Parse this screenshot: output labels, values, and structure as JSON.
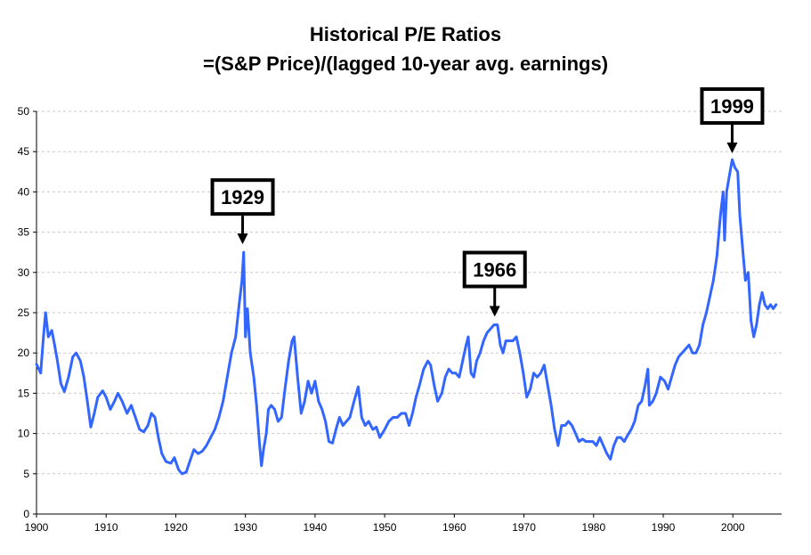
{
  "chart_data": {
    "type": "line",
    "title": "Historical P/E Ratios",
    "subtitle": "=(S&P Price)/(lagged 10-year avg. earnings)",
    "xlabel": "",
    "ylabel": "",
    "xlim": [
      1900,
      2007
    ],
    "ylim": [
      0,
      50
    ],
    "x_ticks": [
      1900,
      1910,
      1920,
      1930,
      1940,
      1950,
      1960,
      1970,
      1980,
      1990,
      2000
    ],
    "y_ticks": [
      0,
      5,
      10,
      15,
      20,
      25,
      30,
      35,
      40,
      45,
      50
    ],
    "grid": "horizontal dashed",
    "series": [
      {
        "name": "P/E ratio",
        "color": "#3366ff",
        "points": [
          [
            1900.0,
            18.6
          ],
          [
            1900.6,
            17.5
          ],
          [
            1901.0,
            22.0
          ],
          [
            1901.3,
            25.0
          ],
          [
            1901.7,
            22.0
          ],
          [
            1902.2,
            22.8
          ],
          [
            1902.6,
            21.0
          ],
          [
            1903.0,
            19.0
          ],
          [
            1903.5,
            16.2
          ],
          [
            1904.0,
            15.2
          ],
          [
            1904.6,
            17.0
          ],
          [
            1905.2,
            19.5
          ],
          [
            1905.7,
            20.0
          ],
          [
            1906.3,
            19.0
          ],
          [
            1906.8,
            17.0
          ],
          [
            1907.3,
            14.0
          ],
          [
            1907.8,
            10.8
          ],
          [
            1908.3,
            12.5
          ],
          [
            1908.8,
            14.5
          ],
          [
            1909.5,
            15.3
          ],
          [
            1910.0,
            14.5
          ],
          [
            1910.6,
            13.0
          ],
          [
            1911.2,
            14.0
          ],
          [
            1911.7,
            15.0
          ],
          [
            1912.3,
            14.0
          ],
          [
            1913.0,
            12.5
          ],
          [
            1913.6,
            13.5
          ],
          [
            1914.2,
            12.0
          ],
          [
            1914.8,
            10.5
          ],
          [
            1915.4,
            10.2
          ],
          [
            1916.0,
            11.0
          ],
          [
            1916.5,
            12.5
          ],
          [
            1917.0,
            12.0
          ],
          [
            1917.5,
            9.5
          ],
          [
            1918.0,
            7.5
          ],
          [
            1918.6,
            6.5
          ],
          [
            1919.3,
            6.3
          ],
          [
            1919.8,
            7.0
          ],
          [
            1920.4,
            5.5
          ],
          [
            1920.9,
            5.0
          ],
          [
            1921.5,
            5.2
          ],
          [
            1922.0,
            6.5
          ],
          [
            1922.6,
            8.0
          ],
          [
            1923.2,
            7.5
          ],
          [
            1923.8,
            7.8
          ],
          [
            1924.4,
            8.5
          ],
          [
            1925.0,
            9.5
          ],
          [
            1925.6,
            10.5
          ],
          [
            1926.2,
            12.0
          ],
          [
            1926.8,
            14.0
          ],
          [
            1927.4,
            17.0
          ],
          [
            1928.0,
            20.0
          ],
          [
            1928.6,
            22.0
          ],
          [
            1929.1,
            26.0
          ],
          [
            1929.5,
            29.0
          ],
          [
            1929.75,
            32.5
          ],
          [
            1930.0,
            22.0
          ],
          [
            1930.3,
            25.5
          ],
          [
            1930.7,
            20.0
          ],
          [
            1931.2,
            17.0
          ],
          [
            1931.6,
            13.5
          ],
          [
            1932.0,
            9.0
          ],
          [
            1932.3,
            6.0
          ],
          [
            1932.6,
            8.0
          ],
          [
            1933.0,
            10.0
          ],
          [
            1933.3,
            13.0
          ],
          [
            1933.7,
            13.5
          ],
          [
            1934.2,
            13.0
          ],
          [
            1934.7,
            11.5
          ],
          [
            1935.2,
            12.0
          ],
          [
            1935.6,
            15.0
          ],
          [
            1936.2,
            19.0
          ],
          [
            1936.7,
            21.5
          ],
          [
            1937.0,
            22.0
          ],
          [
            1937.5,
            17.0
          ],
          [
            1938.0,
            12.5
          ],
          [
            1938.5,
            14.0
          ],
          [
            1939.0,
            16.5
          ],
          [
            1939.5,
            15.0
          ],
          [
            1940.0,
            16.5
          ],
          [
            1940.5,
            14.0
          ],
          [
            1941.0,
            13.0
          ],
          [
            1941.5,
            11.5
          ],
          [
            1942.0,
            9.0
          ],
          [
            1942.5,
            8.8
          ],
          [
            1943.0,
            10.5
          ],
          [
            1943.5,
            12.0
          ],
          [
            1944.0,
            11.0
          ],
          [
            1944.5,
            11.5
          ],
          [
            1945.0,
            12.0
          ],
          [
            1945.6,
            14.0
          ],
          [
            1946.2,
            15.8
          ],
          [
            1946.7,
            12.0
          ],
          [
            1947.2,
            11.0
          ],
          [
            1947.7,
            11.5
          ],
          [
            1948.3,
            10.5
          ],
          [
            1948.8,
            10.8
          ],
          [
            1949.3,
            9.5
          ],
          [
            1950.0,
            10.5
          ],
          [
            1950.6,
            11.5
          ],
          [
            1951.2,
            12.0
          ],
          [
            1951.8,
            12.0
          ],
          [
            1952.4,
            12.5
          ],
          [
            1953.0,
            12.5
          ],
          [
            1953.5,
            11.0
          ],
          [
            1954.0,
            12.5
          ],
          [
            1954.5,
            14.5
          ],
          [
            1955.0,
            16.0
          ],
          [
            1955.6,
            18.0
          ],
          [
            1956.2,
            19.0
          ],
          [
            1956.6,
            18.5
          ],
          [
            1957.1,
            16.0
          ],
          [
            1957.6,
            14.0
          ],
          [
            1958.2,
            15.0
          ],
          [
            1958.7,
            17.0
          ],
          [
            1959.2,
            18.0
          ],
          [
            1959.7,
            17.5
          ],
          [
            1960.2,
            17.5
          ],
          [
            1960.7,
            17.0
          ],
          [
            1961.2,
            19.0
          ],
          [
            1961.7,
            21.0
          ],
          [
            1962.0,
            22.0
          ],
          [
            1962.4,
            17.5
          ],
          [
            1962.8,
            17.0
          ],
          [
            1963.2,
            19.0
          ],
          [
            1963.7,
            20.0
          ],
          [
            1964.2,
            21.5
          ],
          [
            1964.7,
            22.5
          ],
          [
            1965.2,
            23.0
          ],
          [
            1965.7,
            23.5
          ],
          [
            1966.2,
            23.5
          ],
          [
            1966.6,
            21.0
          ],
          [
            1967.0,
            20.0
          ],
          [
            1967.4,
            21.5
          ],
          [
            1967.9,
            21.5
          ],
          [
            1968.4,
            21.5
          ],
          [
            1968.9,
            22.0
          ],
          [
            1969.4,
            20.0
          ],
          [
            1969.9,
            17.5
          ],
          [
            1970.4,
            14.5
          ],
          [
            1970.9,
            15.5
          ],
          [
            1971.4,
            17.5
          ],
          [
            1971.9,
            17.0
          ],
          [
            1972.4,
            17.5
          ],
          [
            1972.9,
            18.5
          ],
          [
            1973.4,
            16.0
          ],
          [
            1973.9,
            13.5
          ],
          [
            1974.4,
            10.5
          ],
          [
            1974.9,
            8.5
          ],
          [
            1975.4,
            11.0
          ],
          [
            1975.9,
            11.0
          ],
          [
            1976.4,
            11.5
          ],
          [
            1976.9,
            11.0
          ],
          [
            1977.4,
            10.0
          ],
          [
            1977.9,
            9.0
          ],
          [
            1978.4,
            9.3
          ],
          [
            1978.9,
            9.0
          ],
          [
            1979.4,
            9.0
          ],
          [
            1979.9,
            9.0
          ],
          [
            1980.4,
            8.5
          ],
          [
            1980.9,
            9.5
          ],
          [
            1981.4,
            8.5
          ],
          [
            1981.9,
            7.5
          ],
          [
            1982.4,
            6.8
          ],
          [
            1982.9,
            8.5
          ],
          [
            1983.4,
            9.5
          ],
          [
            1983.9,
            9.5
          ],
          [
            1984.4,
            9.0
          ],
          [
            1984.9,
            9.8
          ],
          [
            1985.4,
            10.5
          ],
          [
            1985.9,
            11.5
          ],
          [
            1986.4,
            13.5
          ],
          [
            1986.9,
            14.0
          ],
          [
            1987.4,
            16.0
          ],
          [
            1987.8,
            18.0
          ],
          [
            1988.0,
            13.5
          ],
          [
            1988.5,
            14.0
          ],
          [
            1989.0,
            15.0
          ],
          [
            1989.6,
            17.0
          ],
          [
            1990.2,
            16.5
          ],
          [
            1990.7,
            15.5
          ],
          [
            1991.2,
            17.0
          ],
          [
            1991.7,
            18.5
          ],
          [
            1992.2,
            19.5
          ],
          [
            1992.7,
            20.0
          ],
          [
            1993.2,
            20.5
          ],
          [
            1993.7,
            21.0
          ],
          [
            1994.2,
            20.0
          ],
          [
            1994.7,
            20.0
          ],
          [
            1995.2,
            21.0
          ],
          [
            1995.7,
            23.5
          ],
          [
            1996.2,
            25.0
          ],
          [
            1996.7,
            27.0
          ],
          [
            1997.2,
            29.0
          ],
          [
            1997.7,
            32.0
          ],
          [
            1998.2,
            37.0
          ],
          [
            1998.6,
            40.0
          ],
          [
            1998.8,
            34.0
          ],
          [
            1999.1,
            40.0
          ],
          [
            1999.5,
            42.0
          ],
          [
            1999.9,
            44.0
          ],
          [
            2000.3,
            43.0
          ],
          [
            2000.7,
            42.5
          ],
          [
            2001.0,
            37.0
          ],
          [
            2001.4,
            33.0
          ],
          [
            2001.8,
            29.0
          ],
          [
            2002.2,
            30.0
          ],
          [
            2002.6,
            24.0
          ],
          [
            2003.0,
            22.0
          ],
          [
            2003.4,
            23.5
          ],
          [
            2003.8,
            26.0
          ],
          [
            2004.2,
            27.5
          ],
          [
            2004.6,
            26.0
          ],
          [
            2005.0,
            25.5
          ],
          [
            2005.4,
            26.0
          ],
          [
            2005.8,
            25.5
          ],
          [
            2006.2,
            26.0
          ]
        ]
      }
    ],
    "annotations": [
      {
        "label": "1929",
        "x": 1929.6,
        "y": 33.5
      },
      {
        "label": "1966",
        "x": 1965.8,
        "y": 24.5
      },
      {
        "label": "1999",
        "x": 1999.9,
        "y": 44.8
      }
    ]
  }
}
